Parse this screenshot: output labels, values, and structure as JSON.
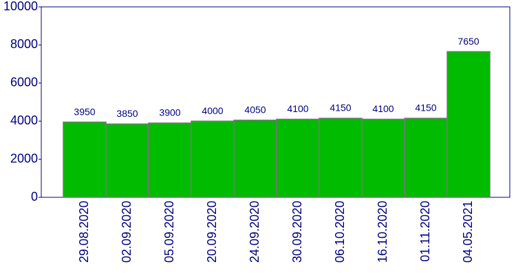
{
  "chart_data": {
    "type": "bar",
    "categories": [
      "29.08.2020",
      "02.09.2020",
      "05.09.2020",
      "20.09.2020",
      "24.09.2020",
      "30.09.2020",
      "06.10.2020",
      "16.10.2020",
      "01.11.2020",
      "04.05.2021"
    ],
    "values": [
      3950,
      3850,
      3900,
      4000,
      4050,
      4100,
      4150,
      4100,
      4150,
      7650
    ],
    "color": "#00bb00",
    "ylim": [
      0,
      10000
    ],
    "yticks": [
      0,
      2000,
      4000,
      6000,
      8000,
      10000
    ],
    "grid": false
  }
}
